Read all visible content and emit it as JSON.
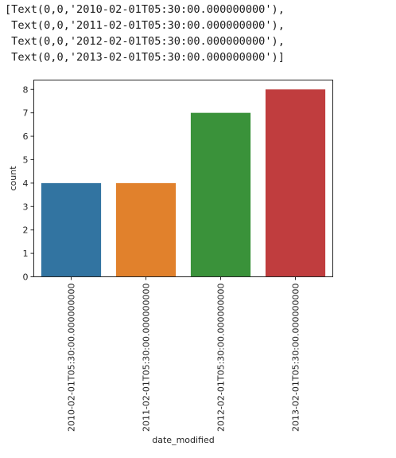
{
  "output_lines": [
    "[Text(0,0,'2010-02-01T05:30:00.000000000'),",
    " Text(0,0,'2011-02-01T05:30:00.000000000'),",
    " Text(0,0,'2012-02-01T05:30:00.000000000'),",
    " Text(0,0,'2013-02-01T05:30:00.000000000')]"
  ],
  "chart_data": {
    "type": "bar",
    "categories": [
      "2010-02-01T05:30:00.000000000",
      "2011-02-01T05:30:00.000000000",
      "2012-02-01T05:30:00.000000000",
      "2013-02-01T05:30:00.000000000"
    ],
    "values": [
      4,
      4,
      7,
      8
    ],
    "colors": [
      "#3274a1",
      "#e1812c",
      "#3a923a",
      "#c03d3e"
    ],
    "xlabel": "date_modified",
    "ylabel": "count",
    "ylim": [
      0,
      8.4
    ],
    "yticks": [
      0,
      1,
      2,
      3,
      4,
      5,
      6,
      7,
      8
    ],
    "grid": false
  }
}
